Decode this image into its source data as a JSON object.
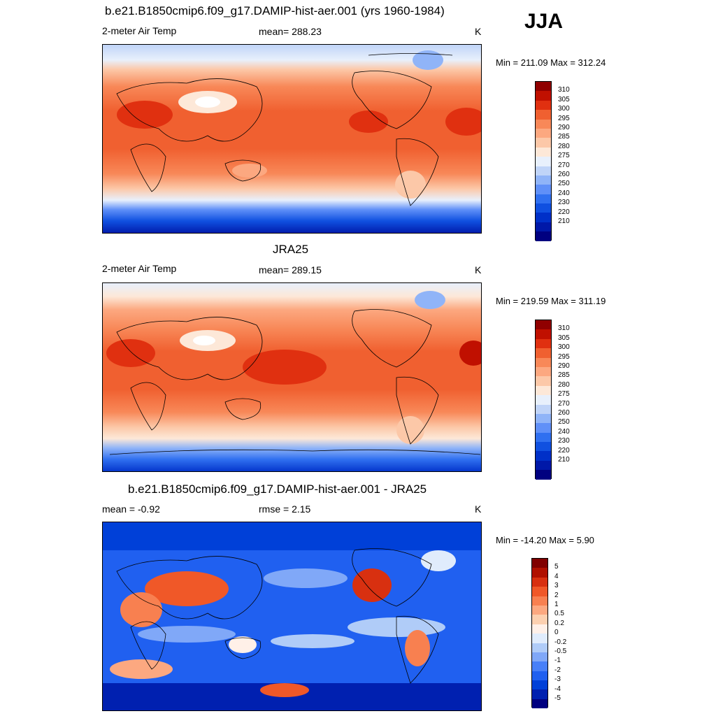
{
  "season": "JJA",
  "colors": {
    "abs": [
      "#000080",
      "#0018a8",
      "#0030c8",
      "#1050e0",
      "#3070f0",
      "#6090f8",
      "#90b4f8",
      "#c0d4f8",
      "#e8f0fc",
      "#fde8d8",
      "#fcc8a8",
      "#fca880",
      "#f88858",
      "#f06030",
      "#e03010",
      "#c01000",
      "#900000"
    ],
    "diff": [
      "#000080",
      "#0020b0",
      "#0040d8",
      "#2060f0",
      "#4880f8",
      "#80a8f8",
      "#b0ccf8",
      "#e0ecfc",
      "#fff0e8",
      "#fcd0b0",
      "#fca880",
      "#f88050",
      "#f05828",
      "#d83010",
      "#b01000",
      "#800000"
    ]
  },
  "panels": [
    {
      "title": "b.e21.B1850cmip6.f09_g17.DAMIP-hist-aer.001 (yrs 1960-1984)",
      "left_label": "2-meter Air Temp",
      "center_label": "mean= 288.23",
      "right_label": "K",
      "minmax": "Min = 211.09 Max = 312.24",
      "colorbar_ticks": [
        "310",
        "305",
        "300",
        "295",
        "290",
        "285",
        "280",
        "275",
        "270",
        "260",
        "250",
        "240",
        "230",
        "220",
        "210"
      ]
    },
    {
      "title": "JRA25",
      "left_label": "2-meter Air Temp",
      "center_label": "mean= 289.15",
      "right_label": "K",
      "minmax": "Min = 219.59 Max = 311.19",
      "colorbar_ticks": [
        "310",
        "305",
        "300",
        "295",
        "290",
        "285",
        "280",
        "275",
        "270",
        "260",
        "250",
        "240",
        "230",
        "220",
        "210"
      ]
    },
    {
      "title": "b.e21.B1850cmip6.f09_g17.DAMIP-hist-aer.001 - JRA25",
      "left_label": "mean =  -0.92",
      "center_label": "rmse =   2.15",
      "right_label": "K",
      "minmax": "Min = -14.20 Max =   5.90",
      "colorbar_ticks": [
        "5",
        "4",
        "3",
        "2",
        "1",
        "0.5",
        "0.2",
        "0",
        "-0.2",
        "-0.5",
        "-1",
        "-2",
        "-3",
        "-4",
        "-5"
      ]
    }
  ]
}
